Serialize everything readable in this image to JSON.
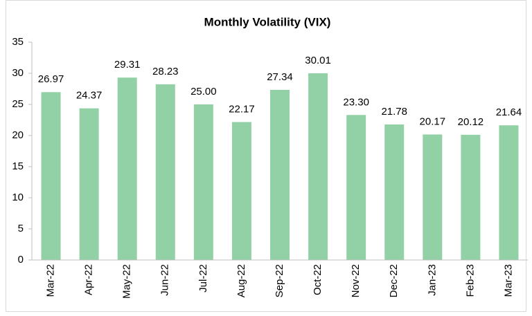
{
  "chart_data": {
    "type": "bar",
    "title": "Monthly Volatility (VIX)",
    "categories": [
      "Mar-22",
      "Apr-22",
      "May-22",
      "Jun-22",
      "Jul-22",
      "Aug-22",
      "Sep-22",
      "Oct-22",
      "Nov-22",
      "Dec-22",
      "Jan-23",
      "Feb-23",
      "Mar-23"
    ],
    "values": [
      26.97,
      24.37,
      29.31,
      28.23,
      25.0,
      22.17,
      27.34,
      30.01,
      23.3,
      21.78,
      20.17,
      20.12,
      21.64
    ],
    "value_labels": [
      "26.97",
      "24.37",
      "29.31",
      "28.23",
      "25.00",
      "22.17",
      "27.34",
      "30.01",
      "23.30",
      "21.78",
      "20.17",
      "20.12",
      "21.64"
    ],
    "color": "#92d1a5",
    "ylim": [
      0,
      35
    ],
    "yticks": [
      0,
      5,
      10,
      15,
      20,
      25,
      30,
      35
    ],
    "grid": false
  }
}
